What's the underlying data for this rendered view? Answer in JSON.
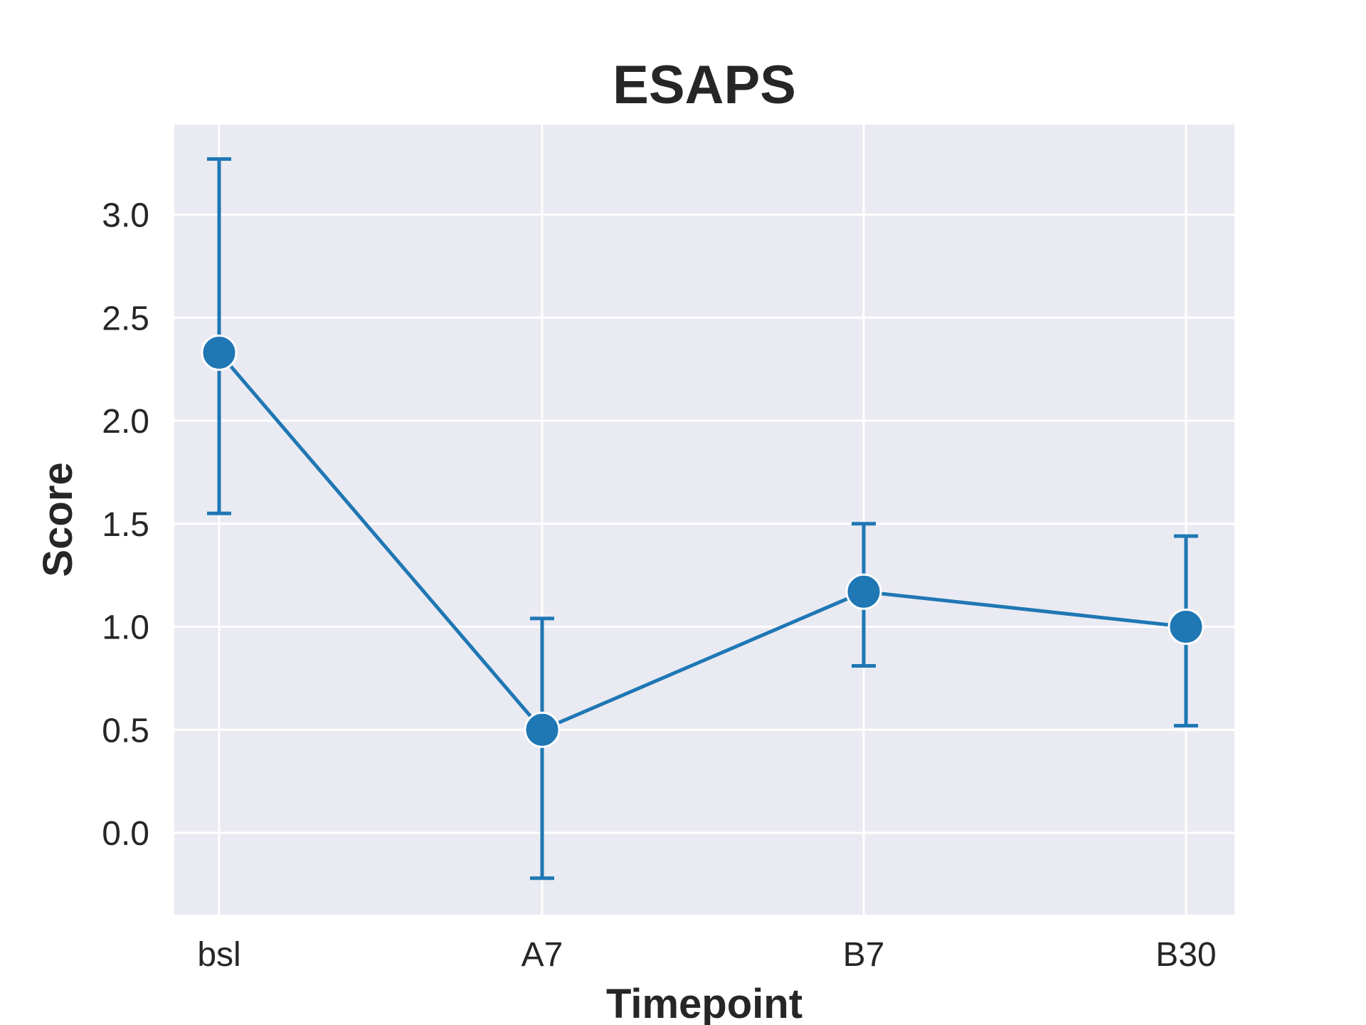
{
  "chart_data": {
    "type": "line",
    "title": "ESAPS",
    "xlabel": "Timepoint",
    "ylabel": "Score",
    "categories": [
      "bsl",
      "A7",
      "B7",
      "B30"
    ],
    "series": [
      {
        "values": [
          2.33,
          0.5,
          1.17,
          1.0
        ],
        "error_low": [
          1.55,
          -0.22,
          0.81,
          0.52
        ],
        "error_high": [
          3.27,
          1.04,
          1.5,
          1.44
        ],
        "color": "#1f77b4"
      }
    ],
    "yticks": [
      "0.0",
      "0.5",
      "1.0",
      "1.5",
      "2.0",
      "2.5",
      "3.0"
    ],
    "ylim": [
      -0.4,
      3.45
    ],
    "grid": true,
    "background_color": "#eaeaf2",
    "grid_color": "#ffffff"
  }
}
